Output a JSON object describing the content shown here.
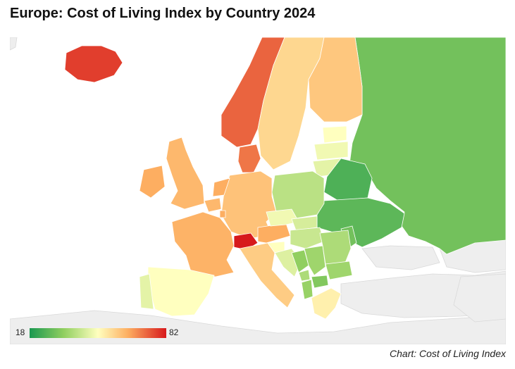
{
  "title": "Europe: Cost of Living Index by Country 2024",
  "source": "Chart: Cost of Living Index",
  "legend": {
    "min": "18",
    "max": "82"
  },
  "colors": {
    "scale": [
      "#1a9850",
      "#91cf60",
      "#ffffbf",
      "#fdae61",
      "#d7191c"
    ],
    "no_data": "#eeeeee",
    "border": "#ffffff"
  },
  "chart_data": {
    "type": "choropleth",
    "value_range": [
      18,
      82
    ],
    "legend_placement": "bottom-left",
    "regions": [
      {
        "name": "Iceland",
        "value": 78
      },
      {
        "name": "Norway",
        "value": 74
      },
      {
        "name": "Sweden",
        "value": 58
      },
      {
        "name": "Finland",
        "value": 61
      },
      {
        "name": "Russia",
        "value": 30
      },
      {
        "name": "Estonia",
        "value": 50
      },
      {
        "name": "Latvia",
        "value": 48
      },
      {
        "name": "Lithuania",
        "value": 46
      },
      {
        "name": "Belarus",
        "value": 25
      },
      {
        "name": "Ukraine",
        "value": 27
      },
      {
        "name": "Moldova",
        "value": 30
      },
      {
        "name": "Poland",
        "value": 40
      },
      {
        "name": "Germany",
        "value": 62
      },
      {
        "name": "Denmark",
        "value": 72
      },
      {
        "name": "Netherlands",
        "value": 66
      },
      {
        "name": "Belgium",
        "value": 64
      },
      {
        "name": "Luxembourg",
        "value": 66
      },
      {
        "name": "United Kingdom",
        "value": 64
      },
      {
        "name": "Ireland",
        "value": 66
      },
      {
        "name": "France",
        "value": 65
      },
      {
        "name": "Switzerland",
        "value": 82
      },
      {
        "name": "Austria",
        "value": 66
      },
      {
        "name": "Czechia",
        "value": 48
      },
      {
        "name": "Slovakia",
        "value": 44
      },
      {
        "name": "Hungary",
        "value": 42
      },
      {
        "name": "Slovenia",
        "value": 50
      },
      {
        "name": "Croatia",
        "value": 45
      },
      {
        "name": "Bosnia and Herzegovina",
        "value": 34
      },
      {
        "name": "Serbia",
        "value": 36
      },
      {
        "name": "Montenegro",
        "value": 38
      },
      {
        "name": "Albania",
        "value": 35
      },
      {
        "name": "North Macedonia",
        "value": 32
      },
      {
        "name": "Romania",
        "value": 38
      },
      {
        "name": "Bulgaria",
        "value": 36
      },
      {
        "name": "Greece",
        "value": 53
      },
      {
        "name": "Italy",
        "value": 60
      },
      {
        "name": "Spain",
        "value": 50
      },
      {
        "name": "Portugal",
        "value": 46
      }
    ]
  }
}
